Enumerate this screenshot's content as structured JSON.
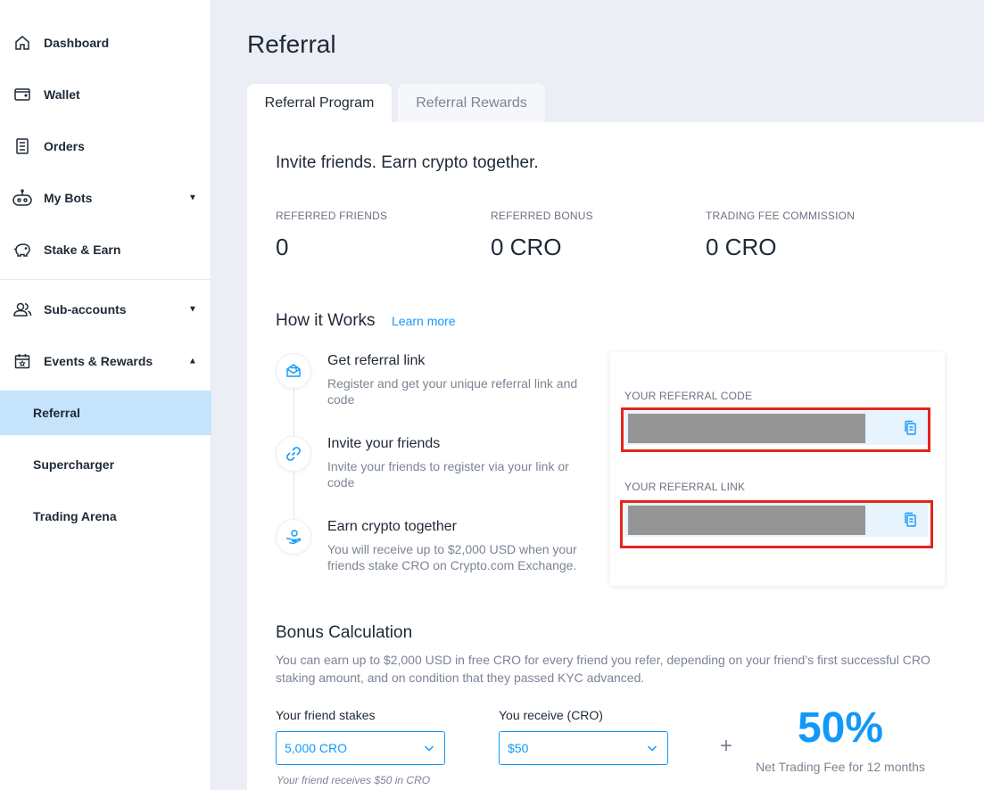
{
  "sidebar": {
    "items": [
      {
        "label": "Dashboard",
        "icon": "home-icon"
      },
      {
        "label": "Wallet",
        "icon": "wallet-icon"
      },
      {
        "label": "Orders",
        "icon": "orders-icon"
      },
      {
        "label": "My Bots",
        "icon": "robot-icon",
        "caret": "▼"
      },
      {
        "label": "Stake & Earn",
        "icon": "piggy-bank-icon"
      },
      {
        "label": "Sub-accounts",
        "icon": "users-icon",
        "caret": "▼"
      },
      {
        "label": "Events & Rewards",
        "icon": "calendar-icon",
        "caret": "▲"
      }
    ],
    "sub_items": [
      {
        "label": "Referral",
        "active": true
      },
      {
        "label": "Supercharger"
      },
      {
        "label": "Trading Arena"
      }
    ]
  },
  "page": {
    "title": "Referral"
  },
  "tabs": [
    {
      "label": "Referral Program",
      "active": true
    },
    {
      "label": "Referral Rewards",
      "active": false
    }
  ],
  "program": {
    "headline": "Invite friends. Earn crypto together.",
    "stats": [
      {
        "label": "REFERRED FRIENDS",
        "value": "0"
      },
      {
        "label": "REFERRED BONUS",
        "value": "0 CRO"
      },
      {
        "label": "TRADING FEE COMMISSION",
        "value": "0 CRO"
      }
    ],
    "how_title": "How it Works",
    "learn_more": "Learn more",
    "steps": [
      {
        "title": "Get referral link",
        "desc": "Register and get your unique referral link and code",
        "icon": "envelope-icon"
      },
      {
        "title": "Invite your friends",
        "desc": "Invite your friends to register via your link or code",
        "icon": "link-icon"
      },
      {
        "title": "Earn crypto together",
        "desc": "You will receive up to $2,000 USD when your friends stake CRO on Crypto.com Exchange.",
        "icon": "hand-coin-icon"
      }
    ],
    "referral_code_label": "YOUR REFERRAL CODE",
    "referral_link_label": "YOUR REFERRAL LINK",
    "bonus": {
      "title": "Bonus Calculation",
      "desc": "You can earn up to $2,000 USD in free CRO for every friend you refer, depending on your friend’s first successful CRO staking amount, and on condition that they passed KYC advanced.",
      "stake_label": "Your friend stakes",
      "stake_value": "5,000 CRO",
      "receive_label": "You receive (CRO)",
      "receive_value": "$50",
      "hint": "Your friend receives $50 in CRO",
      "plus": "+",
      "percent": "50%",
      "percent_sub": "Net Trading Fee for 12 months"
    }
  },
  "colors": {
    "accent": "#1199fa",
    "active_nav": "#c5e4fb",
    "highlight": "#e3261c",
    "page_bg": "#eceef6"
  }
}
